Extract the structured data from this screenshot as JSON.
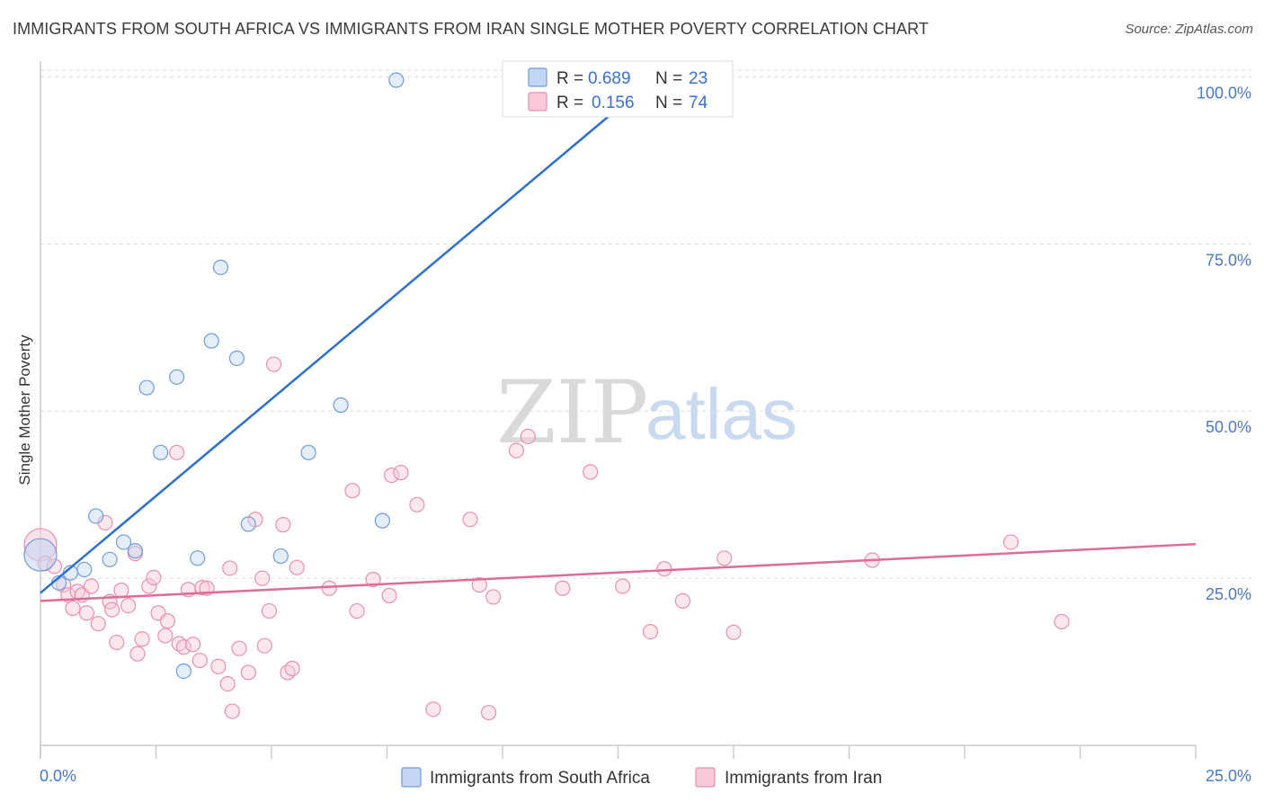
{
  "header": {
    "title": "IMMIGRANTS FROM SOUTH AFRICA VS IMMIGRANTS FROM IRAN SINGLE MOTHER POVERTY CORRELATION CHART",
    "source": "Source: ZipAtlas.com"
  },
  "watermark": {
    "zip": "ZIP",
    "atlas": "atlas"
  },
  "legend": {
    "rows": [
      {
        "r_label": "R =",
        "r_value": "0.689",
        "n_label": "N =",
        "n_value": "23"
      },
      {
        "r_label": "R =",
        "r_value": "0.156",
        "n_label": "N =",
        "n_value": "74"
      }
    ]
  },
  "colors": {
    "south_africa_fill": "#c3d6f4",
    "south_africa_stroke": "#6f9bdc",
    "south_africa_line": "#2c6fd1",
    "iran_fill": "#f8c9d8",
    "iran_stroke": "#e890ae",
    "iran_line": "#e06b98",
    "tick_label": "#4a78c7",
    "grid": "#dddddd"
  },
  "chart_data": {
    "type": "scatter",
    "title": "IMMIGRANTS FROM SOUTH AFRICA VS IMMIGRANTS FROM IRAN SINGLE MOTHER POVERTY CORRELATION CHART",
    "xlabel": "",
    "ylabel": "Single Mother Poverty",
    "xlim": [
      0,
      25
    ],
    "ylim": [
      0,
      101
    ],
    "x_tick_labels": [
      "0.0%",
      "25.0%"
    ],
    "y_ticks": [
      25,
      50,
      75,
      100
    ],
    "y_tick_labels": [
      "25.0%",
      "50.0%",
      "75.0%",
      "100.0%"
    ],
    "grid": true,
    "legend_position": "top-center",
    "series": [
      {
        "name": "Immigrants from South Africa",
        "r": 0.689,
        "n": 23,
        "trend": {
          "x": [
            0.0,
            13.4
          ],
          "y": [
            22.8,
            100.5
          ]
        },
        "points": [
          [
            0.0,
            28.5
          ],
          [
            0.4,
            24.3
          ],
          [
            0.65,
            25.8
          ],
          [
            0.95,
            26.3
          ],
          [
            1.2,
            34.3
          ],
          [
            1.5,
            27.8
          ],
          [
            1.8,
            30.4
          ],
          [
            2.05,
            29.1
          ],
          [
            2.3,
            53.5
          ],
          [
            2.6,
            43.8
          ],
          [
            2.95,
            55.1
          ],
          [
            3.1,
            11.1
          ],
          [
            3.4,
            28.0
          ],
          [
            3.7,
            60.5
          ],
          [
            3.9,
            71.5
          ],
          [
            4.25,
            57.9
          ],
          [
            4.5,
            33.1
          ],
          [
            5.2,
            28.3
          ],
          [
            5.8,
            43.8
          ],
          [
            6.5,
            50.9
          ],
          [
            7.4,
            33.6
          ],
          [
            7.7,
            99.5
          ],
          [
            11.0,
            101.0
          ]
        ]
      },
      {
        "name": "Immigrants from Iran",
        "r": 0.156,
        "n": 74,
        "trend": {
          "x": [
            0.0,
            25.0
          ],
          "y": [
            21.6,
            30.1
          ]
        },
        "points": [
          [
            0.0,
            30.0
          ],
          [
            0.1,
            27.2
          ],
          [
            0.3,
            26.8
          ],
          [
            0.5,
            24.0
          ],
          [
            0.6,
            22.5
          ],
          [
            0.7,
            20.5
          ],
          [
            0.8,
            23.0
          ],
          [
            0.9,
            22.5
          ],
          [
            1.0,
            19.8
          ],
          [
            1.1,
            23.8
          ],
          [
            1.25,
            18.2
          ],
          [
            1.4,
            33.3
          ],
          [
            1.5,
            21.5
          ],
          [
            1.55,
            20.3
          ],
          [
            1.65,
            15.4
          ],
          [
            1.75,
            23.2
          ],
          [
            1.9,
            20.9
          ],
          [
            2.05,
            28.7
          ],
          [
            2.1,
            13.7
          ],
          [
            2.2,
            15.9
          ],
          [
            2.35,
            23.8
          ],
          [
            2.45,
            25.1
          ],
          [
            2.55,
            19.8
          ],
          [
            2.7,
            16.4
          ],
          [
            2.75,
            18.6
          ],
          [
            2.95,
            43.8
          ],
          [
            3.0,
            15.2
          ],
          [
            3.1,
            14.7
          ],
          [
            3.2,
            23.3
          ],
          [
            3.3,
            15.1
          ],
          [
            3.45,
            12.7
          ],
          [
            3.5,
            23.6
          ],
          [
            3.6,
            23.5
          ],
          [
            3.85,
            11.8
          ],
          [
            4.05,
            9.2
          ],
          [
            4.1,
            26.5
          ],
          [
            4.15,
            5.1
          ],
          [
            4.3,
            14.5
          ],
          [
            4.5,
            10.9
          ],
          [
            4.65,
            33.8
          ],
          [
            4.8,
            25.0
          ],
          [
            4.85,
            14.9
          ],
          [
            4.95,
            20.1
          ],
          [
            5.05,
            57.0
          ],
          [
            5.25,
            33.0
          ],
          [
            5.35,
            10.9
          ],
          [
            5.45,
            11.5
          ],
          [
            5.55,
            26.6
          ],
          [
            6.25,
            23.5
          ],
          [
            6.75,
            38.1
          ],
          [
            6.85,
            20.1
          ],
          [
            7.2,
            24.8
          ],
          [
            7.55,
            22.4
          ],
          [
            7.6,
            40.4
          ],
          [
            7.8,
            40.8
          ],
          [
            8.15,
            36.0
          ],
          [
            8.5,
            5.4
          ],
          [
            9.3,
            33.8
          ],
          [
            9.5,
            24.0
          ],
          [
            9.7,
            4.9
          ],
          [
            9.8,
            22.2
          ],
          [
            10.3,
            44.1
          ],
          [
            10.55,
            46.2
          ],
          [
            11.3,
            23.5
          ],
          [
            11.9,
            40.9
          ],
          [
            12.6,
            23.8
          ],
          [
            13.2,
            17.0
          ],
          [
            13.5,
            26.4
          ],
          [
            13.9,
            21.6
          ],
          [
            14.8,
            28.0
          ],
          [
            15.0,
            16.9
          ],
          [
            18.0,
            27.7
          ],
          [
            21.0,
            30.4
          ],
          [
            22.1,
            18.5
          ]
        ]
      }
    ]
  }
}
